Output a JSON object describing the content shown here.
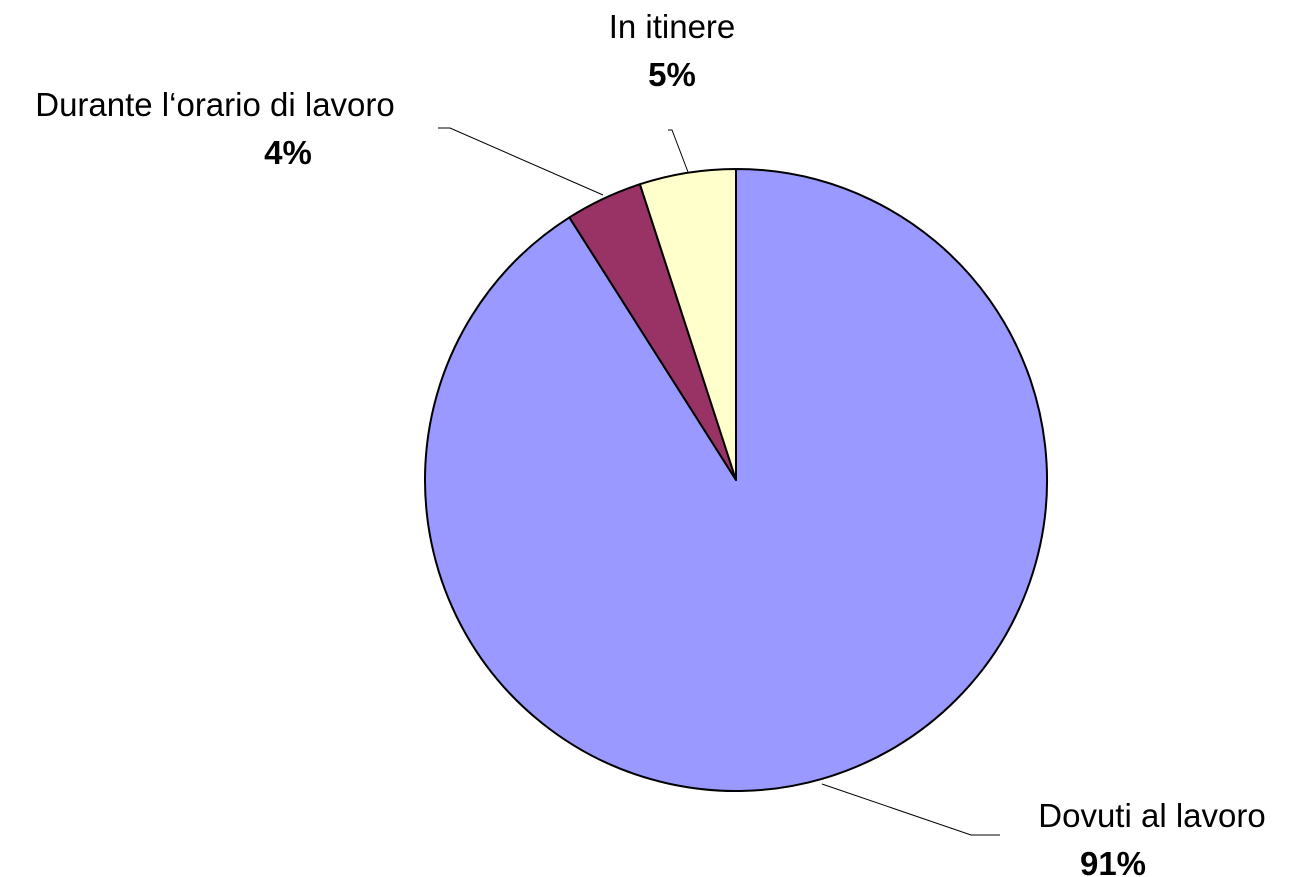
{
  "chart_data": {
    "type": "pie",
    "start_angle": "12 o'clock",
    "direction": "clockwise",
    "slices": [
      {
        "label": "Dovuti al lavoro",
        "value": 91,
        "value_label": "91%",
        "color": "#9999ff"
      },
      {
        "label": "Durante l‘orario di lavoro",
        "value": 4,
        "value_label": "4%",
        "color": "#993366"
      },
      {
        "label": "In itinere",
        "value": 5,
        "value_label": "5%",
        "color": "#ffffcc"
      }
    ]
  }
}
